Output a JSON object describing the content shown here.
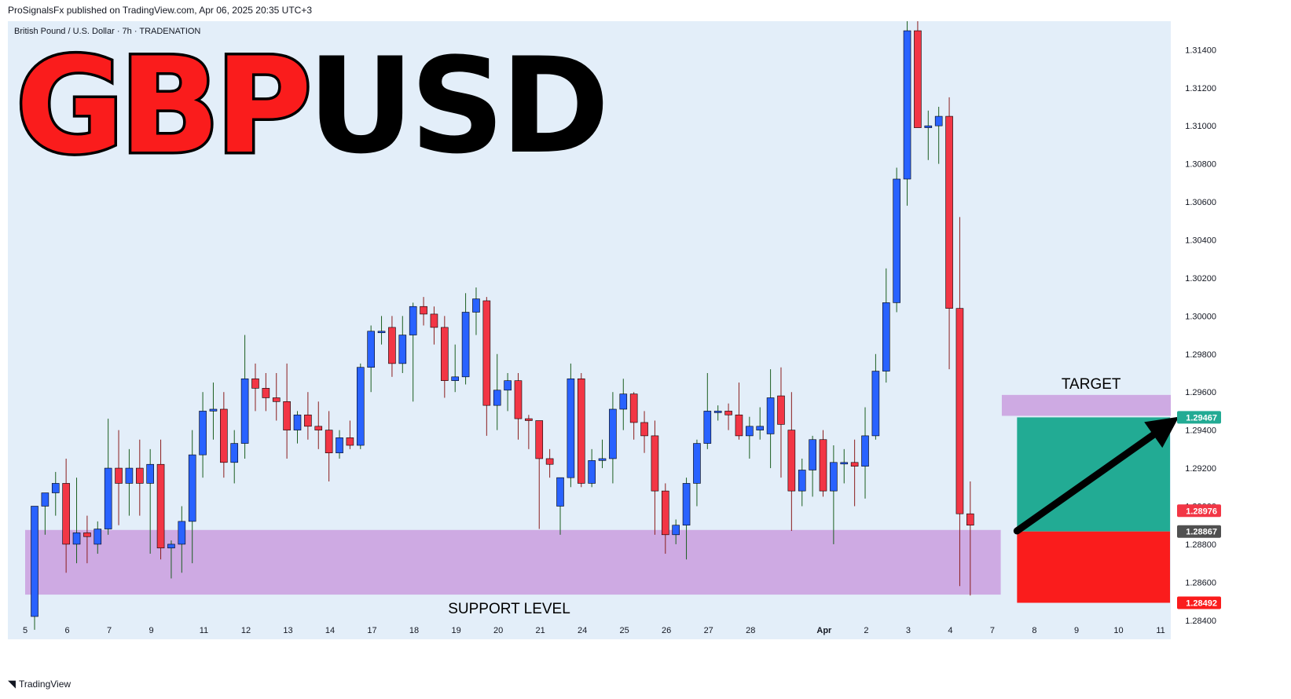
{
  "header": {
    "published_by": "ProSignalsFx published on TradingView.com, Apr 06, 2025 20:35 UTC+3",
    "instrument_line": "British Pound / U.S. Dollar · 7h · TRADENATION"
  },
  "overlay_title": {
    "part1": "GBP",
    "part2": "USD"
  },
  "annotations": {
    "target_label": "TARGET",
    "support_label": "SUPPORT LEVEL"
  },
  "footer": {
    "logo_text": "TradingView"
  },
  "colors": {
    "up": "#2962ff",
    "down": "#f23645",
    "zone": "#ceaae3",
    "profit": "#22ab94",
    "loss": "#fa1c1c",
    "pane_bg": "#e3eef9"
  },
  "chart_data": {
    "type": "candlestick",
    "symbol": "GBPUSD",
    "timeframe": "7h",
    "ylim": [
      1.283,
      1.3155
    ],
    "y_ticks": [
      "1.28400",
      "1.28600",
      "1.28800",
      "1.29000",
      "1.29200",
      "1.29400",
      "1.29600",
      "1.29800",
      "1.30000",
      "1.30200",
      "1.30400",
      "1.30600",
      "1.30800",
      "1.31000",
      "1.31200",
      "1.31400"
    ],
    "x_ticks": [
      {
        "label": "5",
        "i": 0
      },
      {
        "label": "6",
        "i": 4
      },
      {
        "label": "7",
        "i": 8
      },
      {
        "label": "9",
        "i": 12
      },
      {
        "label": "11",
        "i": 17
      },
      {
        "label": "12",
        "i": 21
      },
      {
        "label": "13",
        "i": 25
      },
      {
        "label": "14",
        "i": 29
      },
      {
        "label": "17",
        "i": 33
      },
      {
        "label": "18",
        "i": 37
      },
      {
        "label": "19",
        "i": 41
      },
      {
        "label": "20",
        "i": 45
      },
      {
        "label": "21",
        "i": 49
      },
      {
        "label": "24",
        "i": 53
      },
      {
        "label": "25",
        "i": 57
      },
      {
        "label": "26",
        "i": 61
      },
      {
        "label": "27",
        "i": 65
      },
      {
        "label": "28",
        "i": 69
      },
      {
        "label": "Apr",
        "i": 76
      },
      {
        "label": "2",
        "i": 80
      },
      {
        "label": "3",
        "i": 84
      },
      {
        "label": "4",
        "i": 88
      },
      {
        "label": "7",
        "i": 92
      },
      {
        "label": "8",
        "i": 96
      },
      {
        "label": "9",
        "i": 100
      },
      {
        "label": "10",
        "i": 104
      },
      {
        "label": "11",
        "i": 108
      }
    ],
    "candles": [
      [
        1.2842,
        1.29,
        1.2835,
        1.29
      ],
      [
        1.29,
        1.2907,
        1.2885,
        1.2907
      ],
      [
        1.2907,
        1.2918,
        1.2895,
        1.2912
      ],
      [
        1.2912,
        1.2925,
        1.2865,
        1.288
      ],
      [
        1.288,
        1.2915,
        1.287,
        1.2886
      ],
      [
        1.2886,
        1.2895,
        1.287,
        1.2884
      ],
      [
        1.288,
        1.2892,
        1.2875,
        1.2888
      ],
      [
        1.2888,
        1.2946,
        1.2885,
        1.292
      ],
      [
        1.292,
        1.294,
        1.289,
        1.2912
      ],
      [
        1.2912,
        1.293,
        1.2895,
        1.292
      ],
      [
        1.292,
        1.2935,
        1.2895,
        1.2912
      ],
      [
        1.2912,
        1.293,
        1.2875,
        1.2922
      ],
      [
        1.2922,
        1.2935,
        1.2872,
        1.2878
      ],
      [
        1.2878,
        1.2882,
        1.2862,
        1.288
      ],
      [
        1.288,
        1.29,
        1.2865,
        1.2892
      ],
      [
        1.2892,
        1.294,
        1.287,
        1.2927
      ],
      [
        1.2927,
        1.296,
        1.2915,
        1.295
      ],
      [
        1.295,
        1.2965,
        1.2935,
        1.2951
      ],
      [
        1.2951,
        1.296,
        1.2915,
        1.2923
      ],
      [
        1.2923,
        1.294,
        1.2912,
        1.2933
      ],
      [
        1.2933,
        1.299,
        1.2925,
        1.2967
      ],
      [
        1.2967,
        1.2975,
        1.295,
        1.2962
      ],
      [
        1.2962,
        1.297,
        1.295,
        1.2957
      ],
      [
        1.2957,
        1.297,
        1.2945,
        1.2955
      ],
      [
        1.2955,
        1.2975,
        1.2925,
        1.294
      ],
      [
        1.294,
        1.295,
        1.2933,
        1.2948
      ],
      [
        1.2948,
        1.296,
        1.2935,
        1.2942
      ],
      [
        1.2942,
        1.2955,
        1.293,
        1.294
      ],
      [
        1.294,
        1.295,
        1.2913,
        1.2928
      ],
      [
        1.2928,
        1.294,
        1.2925,
        1.2936
      ],
      [
        1.2936,
        1.2945,
        1.293,
        1.2932
      ],
      [
        1.2932,
        1.2975,
        1.293,
        1.2973
      ],
      [
        1.2973,
        1.2995,
        1.296,
        1.2992
      ],
      [
        1.2992,
        1.3,
        1.2985,
        1.2992
      ],
      [
        1.2994,
        1.3,
        1.2968,
        1.2975
      ],
      [
        1.2975,
        1.3,
        1.297,
        1.299
      ],
      [
        1.299,
        1.3007,
        1.2955,
        1.3005
      ],
      [
        1.3005,
        1.301,
        1.2995,
        1.3001
      ],
      [
        1.3001,
        1.3005,
        1.2985,
        1.2994
      ],
      [
        1.2994,
        1.3,
        1.2957,
        1.2966
      ],
      [
        1.2966,
        1.2985,
        1.296,
        1.2968
      ],
      [
        1.2968,
        1.3012,
        1.2964,
        1.3002
      ],
      [
        1.3002,
        1.3015,
        1.299,
        1.3009
      ],
      [
        1.3008,
        1.301,
        1.2937,
        1.2953
      ],
      [
        1.2953,
        1.298,
        1.294,
        1.2961
      ],
      [
        1.2961,
        1.297,
        1.295,
        1.2966
      ],
      [
        1.2966,
        1.297,
        1.2935,
        1.2946
      ],
      [
        1.2946,
        1.2948,
        1.293,
        1.2945
      ],
      [
        1.2945,
        1.2945,
        1.2888,
        1.2925
      ],
      [
        1.2925,
        1.293,
        1.2915,
        1.2922
      ],
      [
        1.29,
        1.2915,
        1.2885,
        1.2915
      ],
      [
        1.2915,
        1.2975,
        1.291,
        1.2967
      ],
      [
        1.2967,
        1.297,
        1.291,
        1.2912
      ],
      [
        1.2912,
        1.293,
        1.291,
        1.2924
      ],
      [
        1.2924,
        1.2935,
        1.292,
        1.2925
      ],
      [
        1.2925,
        1.296,
        1.2912,
        1.2951
      ],
      [
        1.2951,
        1.2967,
        1.294,
        1.2959
      ],
      [
        1.2959,
        1.296,
        1.2935,
        1.2944
      ],
      [
        1.2944,
        1.295,
        1.2928,
        1.2937
      ],
      [
        1.2937,
        1.2945,
        1.2885,
        1.2908
      ],
      [
        1.2908,
        1.2912,
        1.2875,
        1.2885
      ],
      [
        1.2885,
        1.2893,
        1.288,
        1.289
      ],
      [
        1.289,
        1.2915,
        1.2872,
        1.2912
      ],
      [
        1.2912,
        1.2935,
        1.29,
        1.2933
      ],
      [
        1.2933,
        1.297,
        1.293,
        1.295
      ],
      [
        1.295,
        1.2953,
        1.2945,
        1.295
      ],
      [
        1.295,
        1.2954,
        1.294,
        1.2948
      ],
      [
        1.2948,
        1.2965,
        1.2935,
        1.2937
      ],
      [
        1.2937,
        1.2947,
        1.2925,
        1.2942
      ],
      [
        1.294,
        1.2952,
        1.2935,
        1.2942
      ],
      [
        1.2938,
        1.2972,
        1.292,
        1.2957
      ],
      [
        1.2958,
        1.2973,
        1.2915,
        1.2943
      ],
      [
        1.294,
        1.296,
        1.2887,
        1.2908
      ],
      [
        1.2908,
        1.2925,
        1.29,
        1.2919
      ],
      [
        1.2919,
        1.2937,
        1.2905,
        1.2935
      ],
      [
        1.2935,
        1.294,
        1.2905,
        1.2908
      ],
      [
        1.2908,
        1.2932,
        1.288,
        1.2923
      ],
      [
        1.2923,
        1.293,
        1.2912,
        1.2923
      ],
      [
        1.2923,
        1.2935,
        1.29,
        1.2921
      ],
      [
        1.2921,
        1.2952,
        1.2904,
        1.2937
      ],
      [
        1.2937,
        1.298,
        1.2935,
        1.2971
      ],
      [
        1.2971,
        1.3025,
        1.2965,
        1.3007
      ],
      [
        1.3007,
        1.3078,
        1.3002,
        1.3072
      ],
      [
        1.3072,
        1.3155,
        1.3058,
        1.315
      ],
      [
        1.315,
        1.3155,
        1.31,
        1.3099
      ],
      [
        1.3099,
        1.3108,
        1.3082,
        1.31
      ],
      [
        1.31,
        1.311,
        1.308,
        1.3105
      ],
      [
        1.3105,
        1.3115,
        1.2972,
        1.3004
      ],
      [
        1.3004,
        1.3052,
        1.2858,
        1.2896
      ],
      [
        1.2896,
        1.2913,
        1.2853,
        1.289
      ]
    ],
    "support_zone": {
      "low": 1.28535,
      "high": 1.28875,
      "from_i": 0,
      "to_i": 91
    },
    "target_zone": {
      "low": 1.29475,
      "high": 1.29585,
      "from_i": 92,
      "to_i": 109
    },
    "position": {
      "entry": 1.28867,
      "target": 1.29467,
      "stop": 1.28492,
      "from_i": 93,
      "to_i": 108
    },
    "price_labels": [
      {
        "value": "1.29467",
        "price": 1.29467,
        "color": "#22ab94"
      },
      {
        "value": "1.28976",
        "price": 1.28976,
        "color": "#f23645"
      },
      {
        "value": "1.28867",
        "price": 1.28867,
        "color": "#505050"
      },
      {
        "value": "1.28492",
        "price": 1.28492,
        "color": "#fa1c1c"
      }
    ],
    "arrow": {
      "from": [
        93,
        1.2887
      ],
      "to": [
        109,
        1.2947
      ]
    }
  }
}
